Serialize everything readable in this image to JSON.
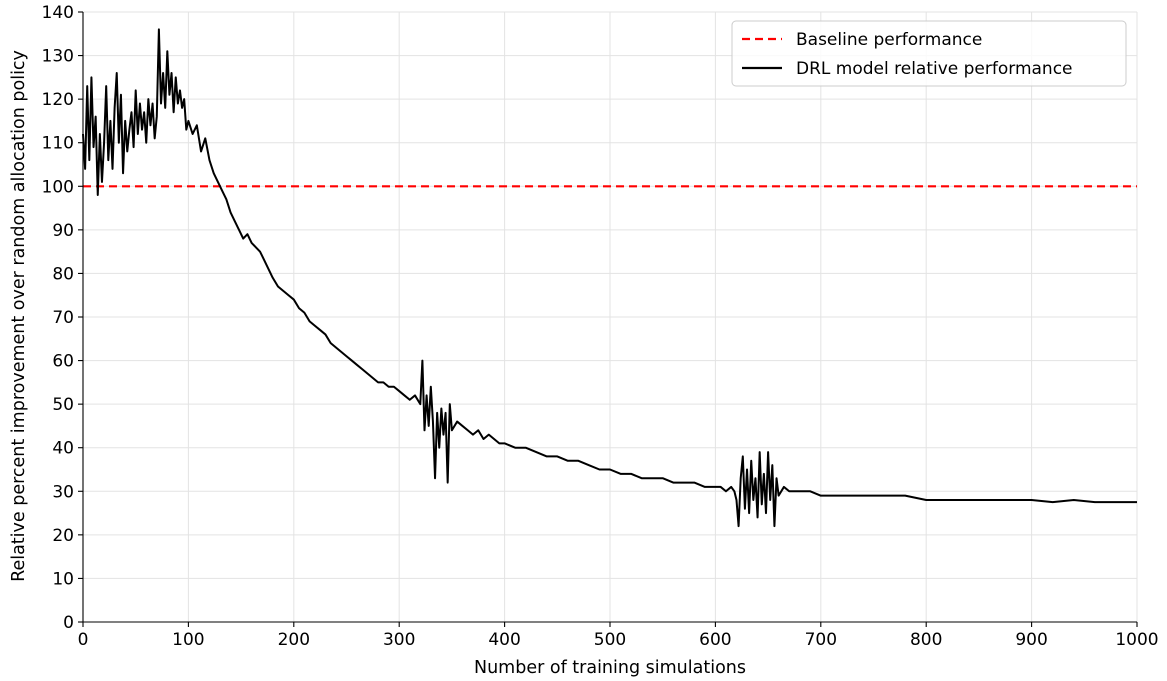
{
  "chart_data": {
    "type": "line",
    "title": "",
    "xlabel": "Number of training simulations",
    "ylabel": "Relative percent improvement over random allocation policy",
    "xlim": [
      0,
      1000
    ],
    "ylim": [
      0,
      140
    ],
    "x_ticks": [
      0,
      100,
      200,
      300,
      400,
      500,
      600,
      700,
      800,
      900,
      1000
    ],
    "y_ticks": [
      0,
      10,
      20,
      30,
      40,
      50,
      60,
      70,
      80,
      90,
      100,
      110,
      120,
      130,
      140
    ],
    "x_tick_labels": [
      "0",
      "100",
      "200",
      "300",
      "400",
      "500",
      "600",
      "700",
      "800",
      "900",
      "1000"
    ],
    "y_tick_labels": [
      "0",
      "10",
      "20",
      "30",
      "40",
      "50",
      "60",
      "70",
      "80",
      "90",
      "100",
      "110",
      "120",
      "130",
      "140"
    ],
    "grid": true,
    "legend_position": "top-right",
    "series": [
      {
        "name": "Baseline performance",
        "style": "dashed",
        "color": "#ff0000",
        "x": [
          0,
          1000
        ],
        "y": [
          100,
          100
        ]
      },
      {
        "name": "DRL model relative performance",
        "style": "solid",
        "color": "#000000",
        "x": [
          0,
          2,
          4,
          6,
          8,
          10,
          12,
          14,
          16,
          18,
          20,
          22,
          24,
          26,
          28,
          30,
          32,
          34,
          36,
          38,
          40,
          42,
          44,
          46,
          48,
          50,
          52,
          54,
          56,
          58,
          60,
          62,
          64,
          66,
          68,
          70,
          72,
          74,
          76,
          78,
          80,
          82,
          84,
          86,
          88,
          90,
          92,
          94,
          96,
          98,
          100,
          104,
          108,
          112,
          116,
          120,
          124,
          128,
          132,
          136,
          140,
          144,
          148,
          152,
          156,
          160,
          164,
          168,
          172,
          176,
          180,
          185,
          190,
          195,
          200,
          205,
          210,
          215,
          220,
          225,
          230,
          235,
          240,
          245,
          250,
          255,
          260,
          265,
          270,
          275,
          280,
          285,
          290,
          295,
          300,
          305,
          310,
          315,
          320,
          322,
          324,
          326,
          328,
          330,
          332,
          334,
          336,
          338,
          340,
          342,
          344,
          346,
          348,
          350,
          355,
          360,
          365,
          370,
          375,
          380,
          385,
          390,
          395,
          400,
          410,
          420,
          430,
          440,
          450,
          460,
          470,
          480,
          490,
          500,
          510,
          520,
          530,
          540,
          550,
          560,
          570,
          580,
          590,
          600,
          605,
          610,
          615,
          618,
          620,
          622,
          624,
          626,
          628,
          630,
          632,
          634,
          636,
          638,
          640,
          642,
          644,
          646,
          648,
          650,
          652,
          654,
          656,
          658,
          660,
          665,
          670,
          680,
          690,
          700,
          720,
          740,
          760,
          780,
          800,
          820,
          840,
          860,
          880,
          900,
          920,
          940,
          960,
          980,
          1000
        ],
        "y": [
          112,
          104,
          123,
          106,
          125,
          109,
          116,
          98,
          112,
          101,
          110,
          123,
          106,
          115,
          104,
          118,
          126,
          110,
          121,
          103,
          115,
          108,
          113,
          117,
          109,
          122,
          112,
          119,
          113,
          117,
          110,
          120,
          114,
          119,
          111,
          116,
          136,
          119,
          126,
          118,
          131,
          121,
          126,
          117,
          125,
          119,
          122,
          118,
          120,
          113,
          115,
          112,
          114,
          108,
          111,
          106,
          103,
          101,
          99,
          97,
          94,
          92,
          90,
          88,
          89,
          87,
          86,
          85,
          83,
          81,
          79,
          77,
          76,
          75,
          74,
          72,
          71,
          69,
          68,
          67,
          66,
          64,
          63,
          62,
          61,
          60,
          59,
          58,
          57,
          56,
          55,
          55,
          54,
          54,
          53,
          52,
          51,
          52,
          50,
          60,
          44,
          52,
          45,
          54,
          46,
          33,
          48,
          40,
          49,
          43,
          48,
          32,
          50,
          44,
          46,
          45,
          44,
          43,
          44,
          42,
          43,
          42,
          41,
          41,
          40,
          40,
          39,
          38,
          38,
          37,
          37,
          36,
          35,
          35,
          34,
          34,
          33,
          33,
          33,
          32,
          32,
          32,
          31,
          31,
          31,
          30,
          31,
          30,
          28,
          22,
          33,
          38,
          26,
          35,
          25,
          37,
          28,
          33,
          24,
          39,
          27,
          34,
          25,
          39,
          28,
          36,
          22,
          33,
          29,
          31,
          30,
          30,
          30,
          29,
          29,
          29,
          29,
          29,
          28,
          28,
          28,
          28,
          28,
          28,
          27.5,
          28,
          27.5,
          27.5,
          27.5
        ]
      }
    ]
  }
}
